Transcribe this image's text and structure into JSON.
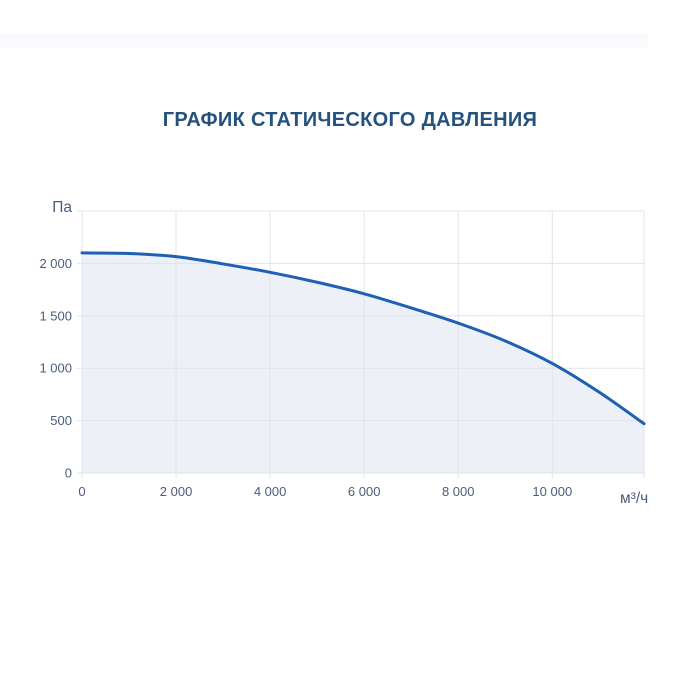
{
  "chart_data": {
    "type": "line",
    "title": "ГРАФИК СТАТИЧЕСКОГО ДАВЛЕНИЯ",
    "xlabel": "м³/ч",
    "ylabel": "Па",
    "xlim": [
      0,
      11950
    ],
    "ylim": [
      0,
      2500
    ],
    "grid": true,
    "legend": "none",
    "x_ticks": [
      {
        "value": 0,
        "label": "0"
      },
      {
        "value": 2000,
        "label": "2 000"
      },
      {
        "value": 4000,
        "label": "4 000"
      },
      {
        "value": 6000,
        "label": "6 000"
      },
      {
        "value": 8000,
        "label": "8 000"
      },
      {
        "value": 10000,
        "label": "10 000"
      }
    ],
    "y_ticks": [
      {
        "value": 0,
        "label": "0"
      },
      {
        "value": 500,
        "label": "500"
      },
      {
        "value": 1000,
        "label": "1 000"
      },
      {
        "value": 1500,
        "label": "1 500"
      },
      {
        "value": 2000,
        "label": "2 000"
      }
    ],
    "points": [
      [
        0,
        2100
      ],
      [
        1000,
        2095
      ],
      [
        2000,
        2065
      ],
      [
        3000,
        1995
      ],
      [
        4000,
        1915
      ],
      [
        5000,
        1820
      ],
      [
        6000,
        1710
      ],
      [
        7000,
        1575
      ],
      [
        8000,
        1430
      ],
      [
        9000,
        1260
      ],
      [
        10000,
        1045
      ],
      [
        11000,
        770
      ],
      [
        11950,
        470
      ]
    ]
  },
  "colors": {
    "line": "#1e60b4",
    "fill": "#edf1f7",
    "grid": "#dfe3ea",
    "axis_label": "#4a5c7e",
    "title": "#25517e",
    "band": "#f8fafd"
  }
}
